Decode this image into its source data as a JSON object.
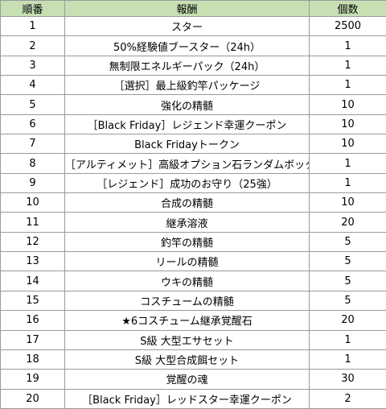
{
  "table": {
    "headers": [
      "順番",
      "報酬",
      "個数"
    ],
    "rows": [
      [
        "1",
        "スター",
        "2500"
      ],
      [
        "2",
        "50%経験値ブースター（24h）",
        "1"
      ],
      [
        "3",
        "無制限エネルギーパック（24h）",
        "1"
      ],
      [
        "4",
        "［選択］最上級釣竿パッケージ",
        "1"
      ],
      [
        "5",
        "強化の精髄",
        "10"
      ],
      [
        "6",
        "［Black Friday］レジェンド幸運クーポン",
        "10"
      ],
      [
        "7",
        "Black Fridayトークン",
        "10"
      ],
      [
        "8",
        "［アルティメット］高級オプション石ランダムボックス",
        "1"
      ],
      [
        "9",
        "［レジェンド］成功のお守り（25強）",
        "1"
      ],
      [
        "10",
        "合成の精髄",
        "10"
      ],
      [
        "11",
        "継承溶液",
        "20"
      ],
      [
        "12",
        "釣竿の精髄",
        "5"
      ],
      [
        "13",
        "リールの精髄",
        "5"
      ],
      [
        "14",
        "ウキの精髄",
        "5"
      ],
      [
        "15",
        "コスチュームの精髄",
        "5"
      ],
      [
        "16",
        "★6コスチューム継承覚醒石",
        "20"
      ],
      [
        "17",
        "S級 大型エサセット",
        "1"
      ],
      [
        "18",
        "S級 大型合成餌セット",
        "1"
      ],
      [
        "19",
        "覚醒の魂",
        "30"
      ],
      [
        "20",
        "［Black Friday］レッドスター幸運クーポン",
        "2"
      ]
    ]
  }
}
